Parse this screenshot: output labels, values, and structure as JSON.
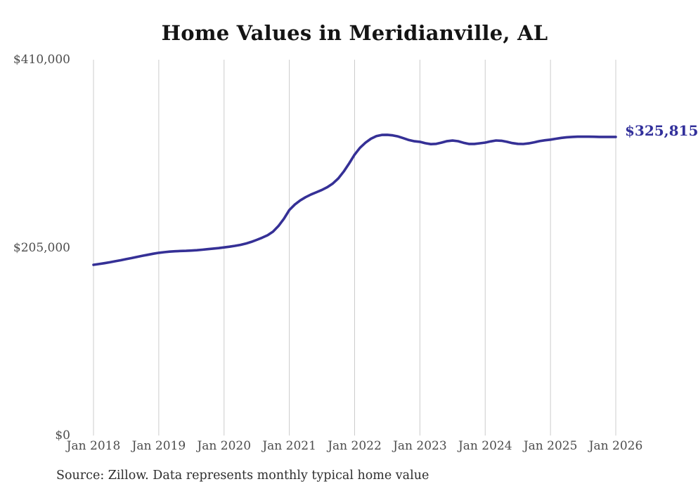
{
  "title": "Home Values in Meridianville, AL",
  "end_label": "$325,815",
  "source_note": "Source: Zillow. Data represents monthly typical home value",
  "colors": {
    "background": "#ffffff",
    "line": "#353096",
    "end_label": "#32309b",
    "grid": "#cccccc",
    "title": "#141414",
    "tick": "#4d4d4d",
    "source": "#2e2e2e"
  },
  "chart_data": {
    "type": "line",
    "title": "Home Values in Meridianville, AL",
    "xlabel": "",
    "ylabel": "",
    "ylim": [
      0,
      410000
    ],
    "y_ticks": [
      410000,
      205000,
      0
    ],
    "y_tick_labels": [
      "$410,000",
      "$205,000",
      "$0"
    ],
    "x_tick_labels": [
      "Jan 2018",
      "Jan 2019",
      "Jan 2020",
      "Jan 2021",
      "Jan 2022",
      "Jan 2023",
      "Jan 2024",
      "Jan 2025",
      "Jan 2026"
    ],
    "grid": "vertical-only",
    "legend": "none",
    "series": [
      {
        "name": "Monthly typical home value",
        "start": "2018-01",
        "interval": "monthly",
        "final_value": 325815,
        "values": [
          186200,
          187100,
          188000,
          189000,
          190100,
          191200,
          192400,
          193600,
          194900,
          196100,
          197200,
          198300,
          199300,
          200000,
          200600,
          201000,
          201300,
          201500,
          201800,
          202200,
          202700,
          203300,
          203900,
          204500,
          205200,
          206000,
          206900,
          208000,
          209400,
          211200,
          213400,
          215800,
          218500,
          222500,
          228500,
          236500,
          246000,
          252000,
          256500,
          260000,
          263000,
          265500,
          268000,
          271000,
          275000,
          280500,
          288000,
          297000,
          306500,
          314000,
          319500,
          323800,
          326600,
          327900,
          328100,
          327500,
          326200,
          324300,
          322300,
          321000,
          320400,
          318900,
          317900,
          318200,
          319600,
          321200,
          321800,
          321100,
          319400,
          318100,
          318100,
          318800,
          319600,
          320900,
          321900,
          321600,
          320400,
          319000,
          318200,
          318000,
          318700,
          319900,
          321200,
          322100,
          322800,
          323800,
          324700,
          325400,
          325800,
          326000,
          326100,
          326000,
          325900,
          325800,
          325800,
          325800,
          325815
        ]
      }
    ]
  }
}
